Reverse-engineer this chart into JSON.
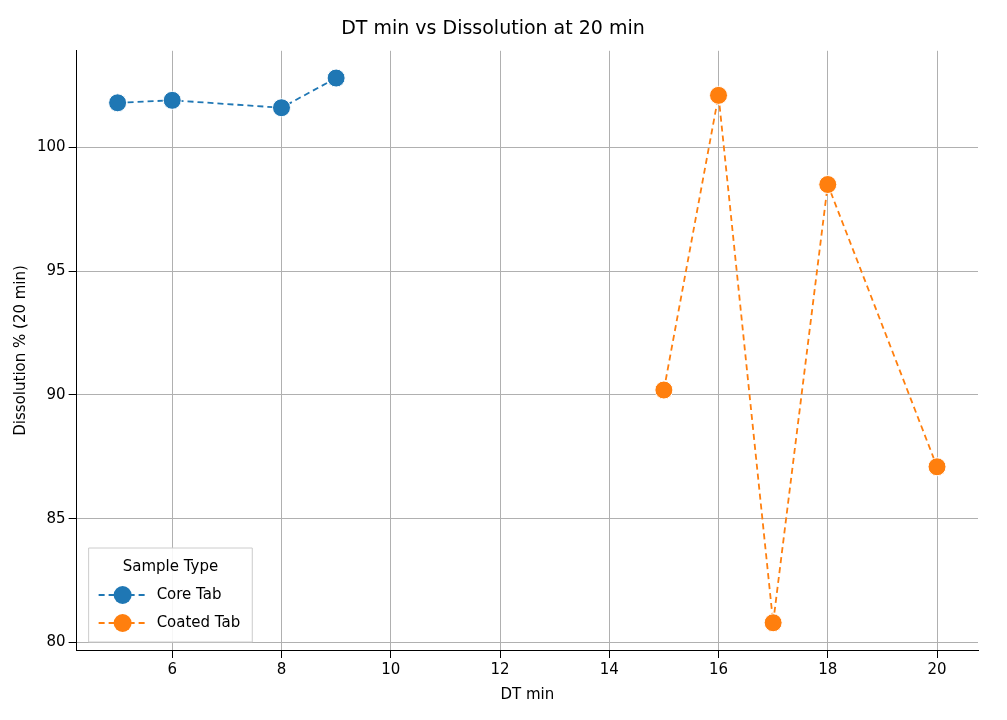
{
  "chart_data": {
    "type": "line",
    "title": "DT min vs Dissolution at 20 min",
    "xlabel": "DT min",
    "ylabel": "Dissolution % (20 min)",
    "legend_title": "Sample Type",
    "series": [
      {
        "name": "Core Tab",
        "color": "#1f77b4",
        "x": [
          5,
          6,
          8,
          9
        ],
        "values": [
          101.8,
          101.9,
          101.6,
          102.8
        ]
      },
      {
        "name": "Coated Tab",
        "color": "#ff7f0e",
        "x": [
          15,
          16,
          17,
          18,
          20
        ],
        "values": [
          90.2,
          102.1,
          80.8,
          98.5,
          87.1
        ]
      }
    ],
    "xlim": [
      4.25,
      20.75
    ],
    "xticks": [
      6,
      8,
      10,
      12,
      14,
      16,
      18,
      20
    ],
    "ylim": [
      79.7,
      103.9
    ],
    "yticks": [
      80,
      85,
      90,
      95,
      100
    ],
    "grid": true,
    "legend": "bottom left",
    "marker": "circle",
    "line_style": "dashed"
  }
}
